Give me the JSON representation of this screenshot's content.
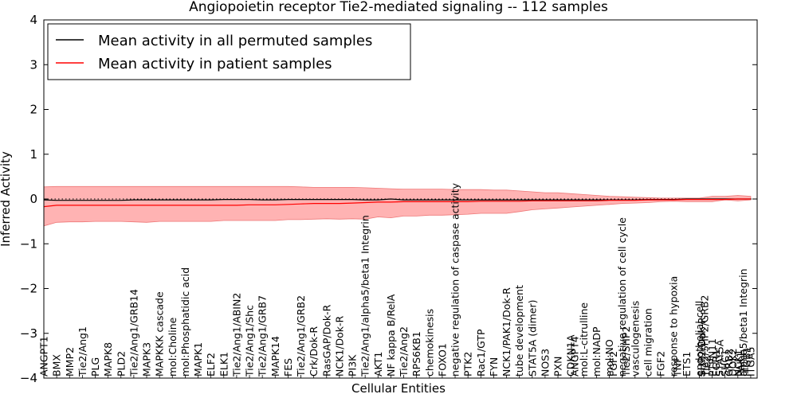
{
  "chart_data": {
    "type": "line",
    "title": "Angiopoietin receptor Tie2-mediated signaling -- 112 samples",
    "xlabel": "Cellular Entities",
    "ylabel": "Inferred Activity",
    "ylim": [
      -4,
      4
    ],
    "yticks": [
      -4,
      -3,
      -2,
      -1,
      0,
      1,
      2,
      3,
      4
    ],
    "ytick_labels": [
      "−4",
      "−3",
      "−2",
      "−1",
      "0",
      "1",
      "2",
      "3",
      "4"
    ],
    "legend": {
      "position": "top-left",
      "entries": [
        "Mean activity in all permuted samples",
        "Mean activity in patient samples"
      ]
    },
    "colors": {
      "permuted": "#000000",
      "patient": "#ff0000",
      "band": "#ff9999",
      "band_edge": "#ee7777"
    },
    "x_range": [
      0,
      55.5
    ],
    "x": [
      0,
      1,
      2,
      3,
      4,
      5,
      6,
      7,
      8,
      9,
      10,
      11,
      12,
      13,
      14,
      15,
      16,
      17,
      18,
      19,
      20,
      21,
      22,
      23,
      24,
      25,
      26,
      27,
      28,
      29,
      30,
      31,
      32,
      33,
      34,
      35,
      36,
      37,
      38,
      39,
      40,
      41,
      42,
      43,
      44,
      45,
      46,
      47,
      48,
      49,
      50,
      51,
      52,
      53,
      54,
      55
    ],
    "series": [
      {
        "name": "Mean activity in all permuted samples",
        "values": [
          -0.02,
          -0.03,
          -0.03,
          -0.03,
          -0.03,
          -0.03,
          -0.03,
          -0.02,
          -0.02,
          -0.02,
          -0.02,
          -0.02,
          -0.02,
          -0.02,
          -0.01,
          -0.01,
          -0.01,
          -0.02,
          -0.02,
          -0.01,
          -0.01,
          -0.01,
          -0.01,
          -0.01,
          -0.01,
          -0.02,
          -0.02,
          0.0,
          -0.02,
          -0.02,
          -0.02,
          -0.02,
          -0.02,
          -0.02,
          -0.02,
          -0.02,
          -0.02,
          -0.02,
          -0.02,
          -0.02,
          -0.02,
          -0.02,
          -0.02,
          -0.02,
          -0.02,
          -0.02,
          -0.02,
          -0.01,
          -0.01,
          -0.01,
          0.0,
          0.0,
          0.0,
          0.0,
          0.0,
          0.0
        ]
      },
      {
        "name": "Mean activity in patient samples",
        "values": [
          -0.17,
          -0.14,
          -0.14,
          -0.14,
          -0.14,
          -0.14,
          -0.14,
          -0.14,
          -0.14,
          -0.14,
          -0.14,
          -0.14,
          -0.14,
          -0.14,
          -0.14,
          -0.14,
          -0.13,
          -0.13,
          -0.13,
          -0.12,
          -0.11,
          -0.1,
          -0.1,
          -0.1,
          -0.09,
          -0.08,
          -0.07,
          -0.07,
          -0.06,
          -0.06,
          -0.06,
          -0.06,
          -0.06,
          -0.06,
          -0.05,
          -0.05,
          -0.05,
          -0.05,
          -0.04,
          -0.04,
          -0.04,
          -0.04,
          -0.04,
          -0.04,
          -0.03,
          -0.03,
          -0.03,
          -0.02,
          -0.02,
          -0.02,
          -0.01,
          -0.01,
          -0.01,
          -0.01,
          0.0,
          0.0
        ]
      }
    ],
    "band_upper": [
      0.27,
      0.28,
      0.28,
      0.28,
      0.28,
      0.28,
      0.28,
      0.28,
      0.28,
      0.28,
      0.28,
      0.28,
      0.28,
      0.28,
      0.28,
      0.28,
      0.28,
      0.28,
      0.28,
      0.28,
      0.27,
      0.26,
      0.26,
      0.26,
      0.26,
      0.25,
      0.24,
      0.23,
      0.22,
      0.22,
      0.22,
      0.22,
      0.21,
      0.21,
      0.21,
      0.2,
      0.2,
      0.18,
      0.16,
      0.14,
      0.14,
      0.12,
      0.1,
      0.08,
      0.06,
      0.05,
      0.04,
      0.03,
      0.02,
      0.02,
      0.02,
      0.02,
      0.06,
      0.06,
      0.08,
      0.06
    ],
    "band_lower": [
      -0.6,
      -0.52,
      -0.51,
      -0.51,
      -0.5,
      -0.5,
      -0.5,
      -0.51,
      -0.52,
      -0.5,
      -0.5,
      -0.5,
      -0.5,
      -0.5,
      -0.48,
      -0.48,
      -0.48,
      -0.48,
      -0.48,
      -0.46,
      -0.46,
      -0.45,
      -0.44,
      -0.45,
      -0.44,
      -0.45,
      -0.4,
      -0.42,
      -0.38,
      -0.38,
      -0.36,
      -0.36,
      -0.35,
      -0.34,
      -0.32,
      -0.32,
      -0.32,
      -0.28,
      -0.24,
      -0.22,
      -0.2,
      -0.18,
      -0.16,
      -0.14,
      -0.12,
      -0.1,
      -0.09,
      -0.08,
      -0.06,
      -0.05,
      -0.06,
      -0.06,
      -0.06,
      -0.02,
      -0.04,
      -0.02
    ],
    "x_tick_labels": [
      {
        "x": 0,
        "label": "ANGPT1"
      },
      {
        "x": 1,
        "label": "BMX"
      },
      {
        "x": 2,
        "label": "MMP2"
      },
      {
        "x": 3,
        "label": "Tie2/Ang1"
      },
      {
        "x": 4,
        "label": "PLG"
      },
      {
        "x": 5,
        "label": "MAPK8"
      },
      {
        "x": 6,
        "label": "PLD2"
      },
      {
        "x": 7,
        "label": "Tie2/Ang1/GRB14"
      },
      {
        "x": 8,
        "label": "MAPK3"
      },
      {
        "x": 9,
        "label": "MAPKKK cascade"
      },
      {
        "x": 10,
        "label": "mol:Choline"
      },
      {
        "x": 11,
        "label": "mol:Phosphatidic acid"
      },
      {
        "x": 12,
        "label": "MAPK1"
      },
      {
        "x": 13,
        "label": "ELF2"
      },
      {
        "x": 14,
        "label": "ELK1"
      },
      {
        "x": 15,
        "label": "Tie2/Ang1/ABIN2"
      },
      {
        "x": 16,
        "label": "Tie2/Ang1/Shc"
      },
      {
        "x": 17,
        "label": "Tie2/Ang1/GRB7"
      },
      {
        "x": 18,
        "label": "MAPK14"
      },
      {
        "x": 19,
        "label": "FES"
      },
      {
        "x": 20,
        "label": "Tie2/Ang1/GRB2"
      },
      {
        "x": 21,
        "label": "Crk/Dok-R"
      },
      {
        "x": 22,
        "label": "RasGAP/Dok-R"
      },
      {
        "x": 23,
        "label": "NCK1/Dok-R"
      },
      {
        "x": 24,
        "label": "PI3K"
      },
      {
        "x": 25,
        "label": "Tie2/Ang1/alpha5/beta1 Integrin"
      },
      {
        "x": 26,
        "label": "AKT1"
      },
      {
        "x": 27,
        "label": "NF kappa B/RelA"
      },
      {
        "x": 28,
        "label": "Tie2/Ang2"
      },
      {
        "x": 29,
        "label": "RPS6KB1"
      },
      {
        "x": 30,
        "label": "chemokinesis"
      },
      {
        "x": 31,
        "label": "FOXO1"
      },
      {
        "x": 32,
        "label": "negative regulation of caspase activity"
      },
      {
        "x": 33,
        "label": "PTK2"
      },
      {
        "x": 34,
        "label": "Rac1/GTP"
      },
      {
        "x": 35,
        "label": "FYN"
      },
      {
        "x": 36,
        "label": "NCK1/PAK1/Dok-R"
      },
      {
        "x": 37,
        "label": "tube development"
      },
      {
        "x": 38,
        "label": "STAT5A (dimer)"
      },
      {
        "x": 39,
        "label": "NOS3"
      },
      {
        "x": 40,
        "label": "PXN"
      },
      {
        "x": 41,
        "label": "CDKN1A"
      },
      {
        "x": 41.3,
        "label": "ANGPT4"
      },
      {
        "x": 42,
        "label": "mol:L-citrulline"
      },
      {
        "x": 43,
        "label": "mol:NADP"
      },
      {
        "x": 44,
        "label": "mol:NO"
      },
      {
        "x": 44.3,
        "label": "FGF2"
      },
      {
        "x": 45,
        "label": "negative regulation of cell cycle"
      },
      {
        "x": 45.3,
        "label": "Tie2/SHP2"
      },
      {
        "x": 46,
        "label": "vasculogenesis"
      },
      {
        "x": 47,
        "label": "cell migration"
      },
      {
        "x": 48,
        "label": "FGF2"
      },
      {
        "x": 49,
        "label": "response to hypoxia"
      },
      {
        "x": 49.3,
        "label": "TNF"
      },
      {
        "x": 50,
        "label": "ETS1"
      },
      {
        "x": 51,
        "label": "endothelial cell"
      },
      {
        "x": 51.2,
        "label": "SHP2/Dok-R"
      },
      {
        "x": 51.4,
        "label": "Tie2/SHP2/GRB2"
      },
      {
        "x": 51.6,
        "label": "Tie2"
      },
      {
        "x": 52,
        "label": "PTPN11"
      },
      {
        "x": 52.3,
        "label": "EGR1"
      },
      {
        "x": 52.6,
        "label": "STAT5A"
      },
      {
        "x": 53,
        "label": "SHC1"
      },
      {
        "x": 53.3,
        "label": "GRB2"
      },
      {
        "x": 53.6,
        "label": "DOK2"
      },
      {
        "x": 54,
        "label": "NCK1"
      },
      {
        "x": 54.2,
        "label": "PAK1"
      },
      {
        "x": 54.4,
        "label": "alpha5/beta1 Integrin"
      },
      {
        "x": 54.7,
        "label": "ITGB1"
      },
      {
        "x": 55,
        "label": "ITGA5"
      }
    ]
  }
}
